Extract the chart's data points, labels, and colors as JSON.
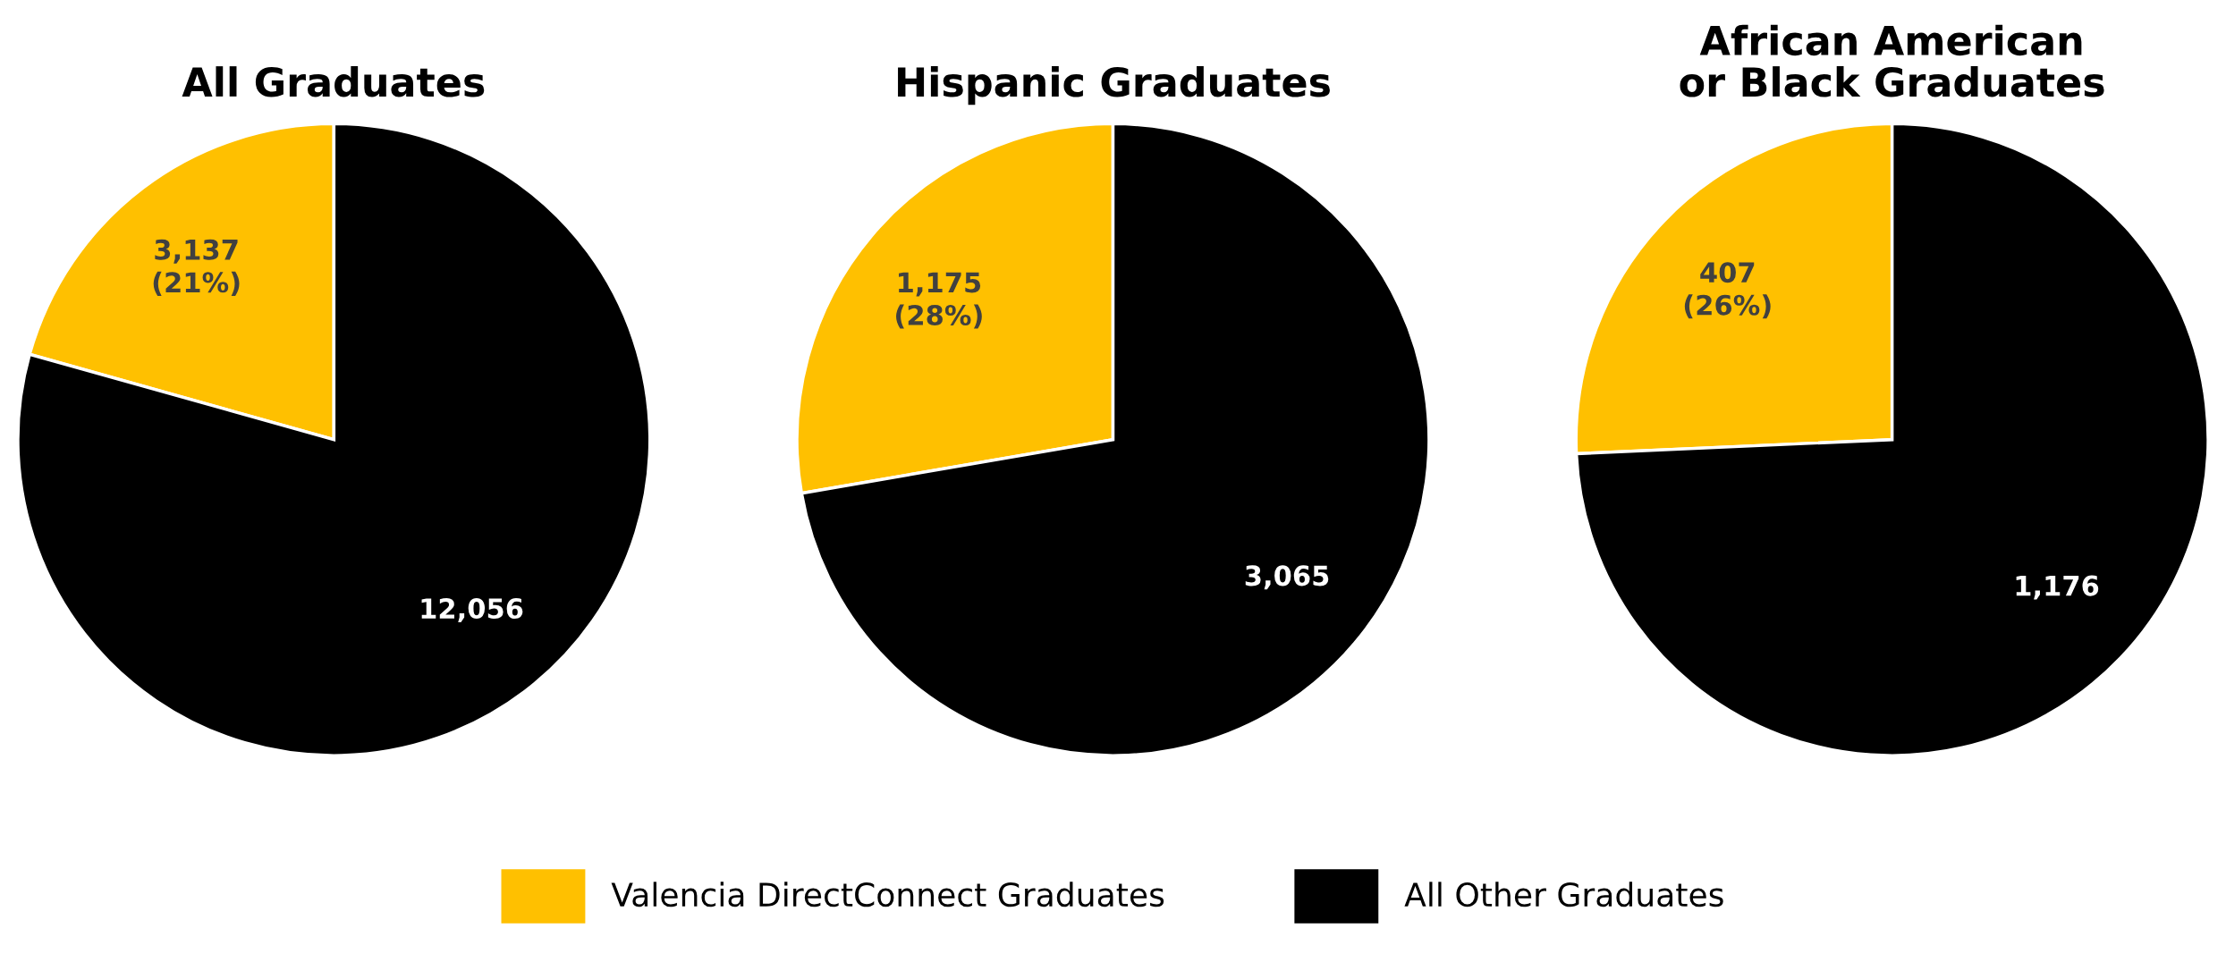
{
  "chart_data": [
    {
      "type": "pie",
      "title": "All Graduates",
      "categories": [
        "Valencia DirectConnect Graduates",
        "All Other Graduates"
      ],
      "values": [
        3137,
        12056
      ],
      "colors": [
        "#ffc000",
        "#000000"
      ],
      "value_labels": [
        "3,137\n(21%)",
        "12,056"
      ],
      "legend": "bottom"
    },
    {
      "type": "pie",
      "title": "Hispanic Graduates",
      "categories": [
        null,
        null
      ],
      "values": [
        1175,
        3065
      ],
      "colors": [
        "#ffc000",
        "#000000"
      ],
      "value_labels": [
        "1,175\n(28%)",
        "3,065"
      ]
    },
    {
      "type": "pie",
      "title": "African American\nor Black Graduates",
      "categories": [
        null,
        null
      ],
      "values": [
        407,
        1176
      ],
      "colors": [
        "#ffc000",
        "#000000"
      ],
      "value_labels": [
        "407\n(26%)",
        "1,176"
      ]
    }
  ]
}
